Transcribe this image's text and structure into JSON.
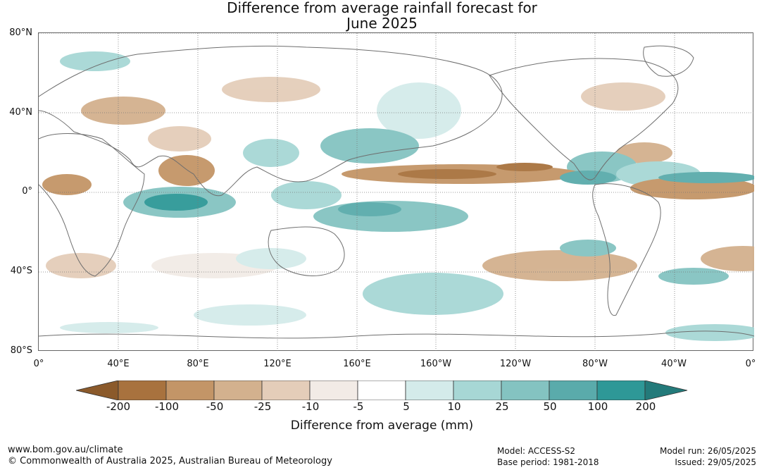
{
  "title": {
    "line1": "Difference from average rainfall forecast for",
    "line2": "June 2025"
  },
  "map": {
    "lat_labels": [
      "80°N",
      "40°N",
      "0°",
      "40°S",
      "80°S"
    ],
    "lon_labels": [
      "0°",
      "40°E",
      "80°E",
      "120°E",
      "160°E",
      "160°W",
      "120°W",
      "80°W",
      "40°W",
      "0°"
    ],
    "colors": {
      "land_outline": "#6e6e6e",
      "grid": "#777777"
    }
  },
  "legend": {
    "title": "Difference from average (mm)",
    "tick_labels": [
      "-200",
      "-100",
      "-50",
      "-25",
      "-10",
      "-5",
      "5",
      "10",
      "25",
      "50",
      "100",
      "200"
    ],
    "colors": [
      "#8b5a2b",
      "#a8723e",
      "#c39567",
      "#d3b18e",
      "#e4cdb9",
      "#f2ebe6",
      "#ffffff",
      "#d4ebea",
      "#a7d7d5",
      "#84c3c1",
      "#5aabab",
      "#2e9897",
      "#237a7a"
    ]
  },
  "footer": {
    "url": "www.bom.gov.au/climate",
    "copyright": "© Commonwealth of Australia 2025, Australian Bureau of Meteorology",
    "model": "Model: ACCESS-S2",
    "base_period": "Base period: 1981-2018",
    "model_run": "Model run: 26/05/2025",
    "issued": "Issued: 29/05/2025"
  }
}
